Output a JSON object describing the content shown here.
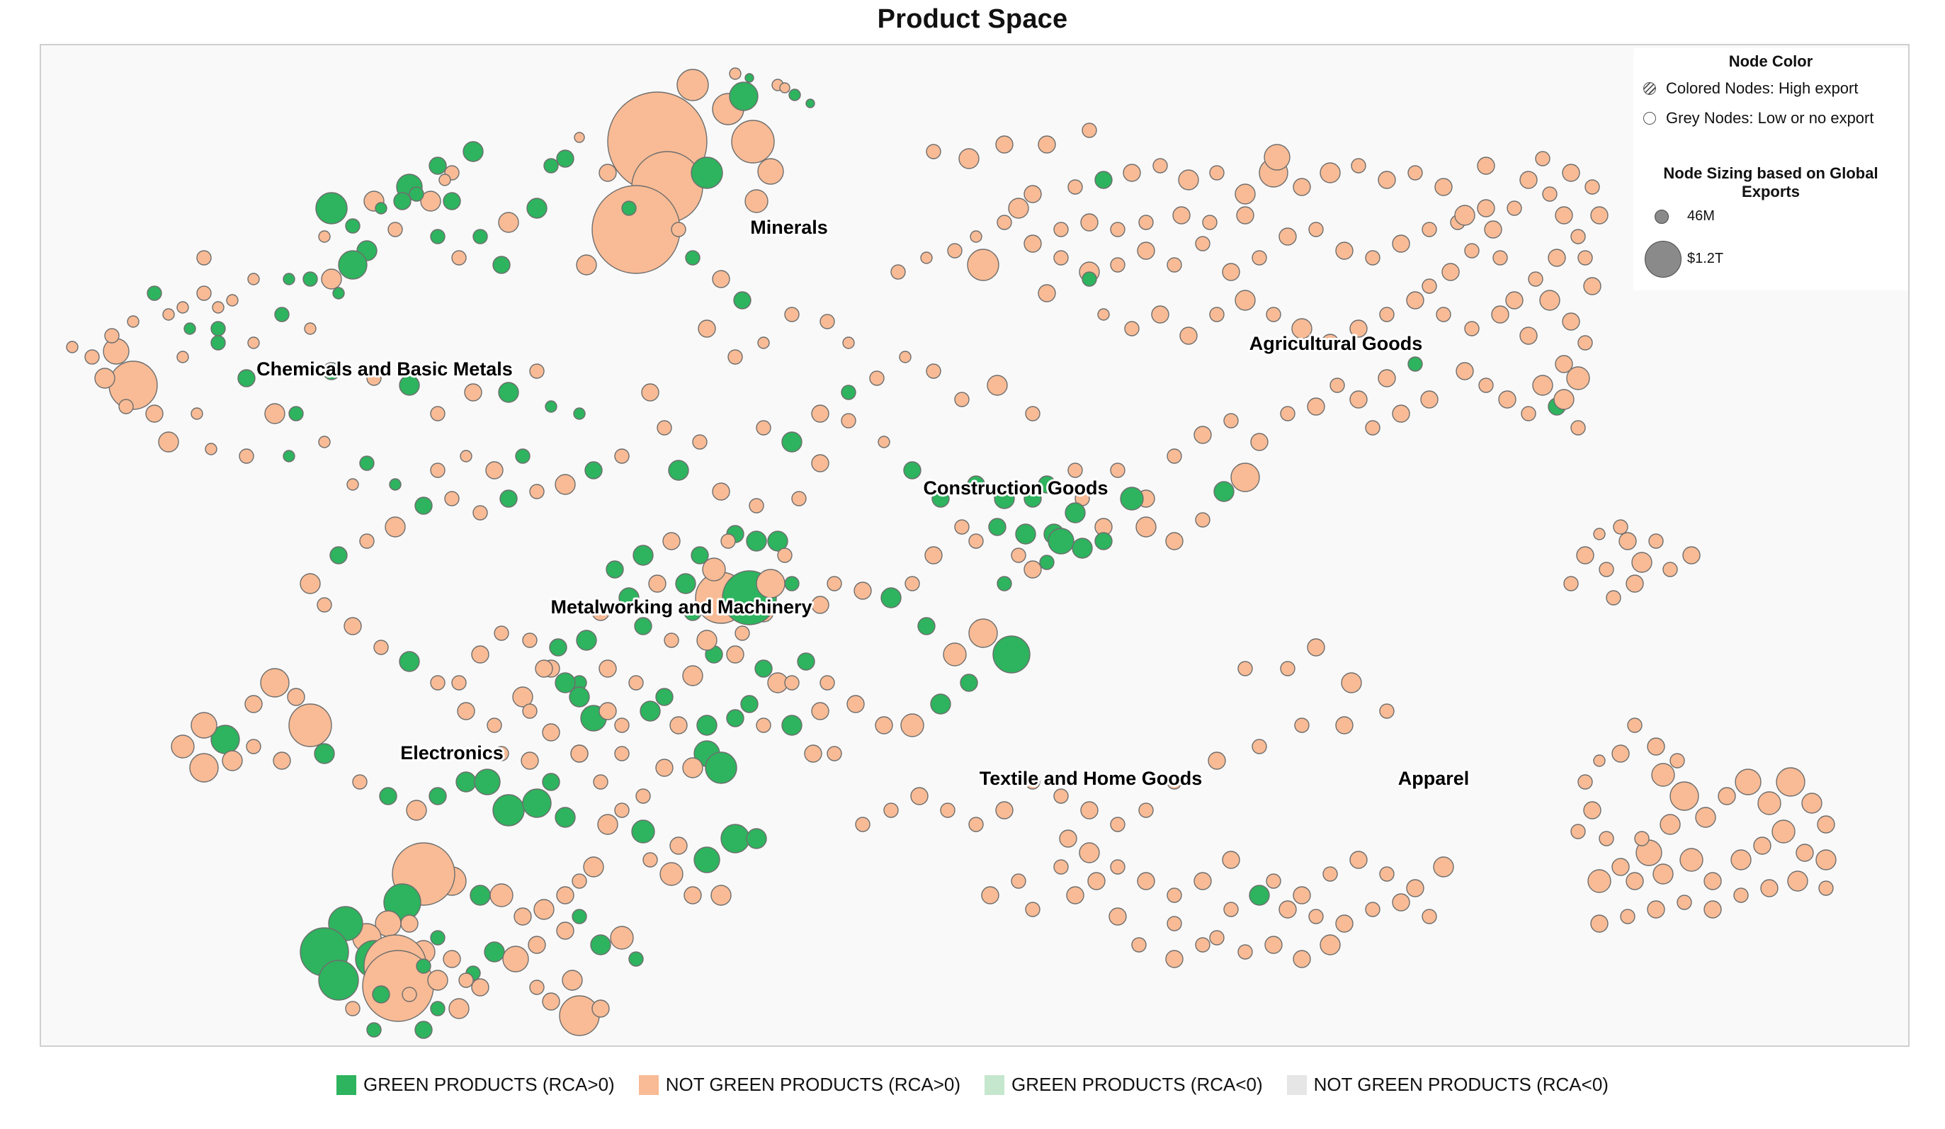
{
  "title": "Product Space",
  "colors": {
    "green_rca_pos": "#2eb35e",
    "not_green_rca_pos": "#f8bb95",
    "green_rca_neg": "#c5e7cd",
    "not_green_rca_neg": "#e6e6e6",
    "node_stroke": "#6e6e6e"
  },
  "clusters": [
    "Minerals",
    "Chemicals and Basic Metals",
    "Agricultural Goods",
    "Construction Goods",
    "Metalworking and Machinery",
    "Electronics",
    "Textile and Home Goods",
    "Apparel"
  ],
  "node_legend": {
    "color_title": "Node Color",
    "colored_label": "Colored Nodes: High export",
    "grey_label": "Grey Nodes: Low or no export",
    "size_title": "Node Sizing based on Global Exports",
    "small_label": "46M",
    "large_label": "$1.2T"
  },
  "category_legend": [
    {
      "label": "GREEN PRODUCTS (RCA>0)",
      "color": "#2eb35e"
    },
    {
      "label": "NOT GREEN PRODUCTS (RCA>0)",
      "color": "#f8bb95"
    },
    {
      "label": "GREEN PRODUCTS (RCA<0)",
      "color": "#c5e7cd"
    },
    {
      "label": "NOT GREEN PRODUCTS (RCA<0)",
      "color": "#e6e6e6"
    }
  ]
}
